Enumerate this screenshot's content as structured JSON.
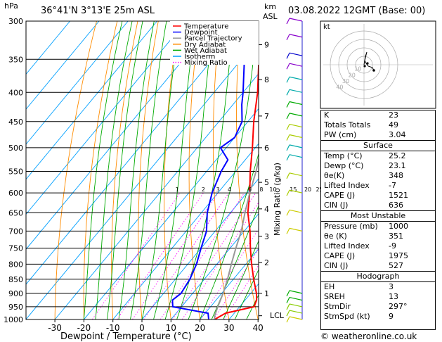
{
  "header": {
    "hpa_label": "hPa",
    "location": "36°41'N  3°13'E  25m  ASL",
    "km_label": "km",
    "asl_label": "ASL",
    "datetime": "03.08.2022  12GMT  (Base: 00)"
  },
  "footer": {
    "credit": "© weatheronline.co.uk"
  },
  "legend": [
    {
      "name": "Temperature",
      "color": "#ff0000",
      "style": "solid"
    },
    {
      "name": "Dewpoint",
      "color": "#0000ff",
      "style": "solid"
    },
    {
      "name": "Parcel Trajectory",
      "color": "#999999",
      "style": "solid"
    },
    {
      "name": "Dry Adiabat",
      "color": "#ff8c00",
      "style": "solid"
    },
    {
      "name": "Wet Adiabat",
      "color": "#00aa00",
      "style": "solid"
    },
    {
      "name": "Isotherm",
      "color": "#00a0ff",
      "style": "solid"
    },
    {
      "name": "Mixing Ratio",
      "color": "#ff00ff",
      "style": "dotted"
    }
  ],
  "chart_data": {
    "type": "line",
    "xlabel": "Dewpoint / Temperature (°C)",
    "ylabel_right": "Mixing Ratio (g/kg)",
    "pressure_ticks": [
      300,
      350,
      400,
      450,
      500,
      550,
      600,
      650,
      700,
      750,
      800,
      850,
      900,
      950,
      1000
    ],
    "temp_ticks": [
      -30,
      -20,
      -10,
      0,
      10,
      20,
      30,
      40
    ],
    "xlim": [
      -40,
      40
    ],
    "ylim": [
      1000,
      300
    ],
    "km_ticks": [
      {
        "km": "1",
        "p": 900
      },
      {
        "km": "2",
        "p": 795
      },
      {
        "km": "3",
        "p": 715
      },
      {
        "km": "4",
        "p": 640
      },
      {
        "km": "5",
        "p": 575
      },
      {
        "km": "6",
        "p": 500
      },
      {
        "km": "7",
        "p": 440
      },
      {
        "km": "8",
        "p": 380
      },
      {
        "km": "9",
        "p": 330
      }
    ],
    "lcl": {
      "label": "LCL",
      "p": 985
    },
    "mixing_ratio_labels": [
      {
        "v": "1",
        "p": 600,
        "t": -7
      },
      {
        "v": "2",
        "p": 600,
        "t": 2
      },
      {
        "v": "3",
        "p": 600,
        "t": 7
      },
      {
        "v": "4",
        "p": 600,
        "t": 11
      },
      {
        "v": "6",
        "p": 600,
        "t": 18
      },
      {
        "v": "8",
        "p": 600,
        "t": 22
      },
      {
        "v": "10",
        "p": 600,
        "t": 26
      },
      {
        "v": "15",
        "p": 600,
        "t": 33
      },
      {
        "v": "20",
        "p": 600,
        "t": 38
      },
      {
        "v": "25",
        "p": 600,
        "t": 42
      }
    ],
    "series": [
      {
        "name": "Temperature",
        "color": "#ff0000",
        "points": [
          [
            1000,
            25
          ],
          [
            975,
            27
          ],
          [
            950,
            35
          ],
          [
            925,
            34
          ],
          [
            900,
            32
          ],
          [
            850,
            27
          ],
          [
            800,
            22
          ],
          [
            750,
            17
          ],
          [
            700,
            12
          ],
          [
            650,
            6
          ],
          [
            600,
            1
          ],
          [
            550,
            -5
          ],
          [
            500,
            -11
          ],
          [
            450,
            -18
          ],
          [
            400,
            -25
          ],
          [
            350,
            -34
          ],
          [
            300,
            -44
          ]
        ]
      },
      {
        "name": "Dewpoint",
        "color": "#0000ff",
        "points": [
          [
            1000,
            23
          ],
          [
            975,
            21
          ],
          [
            950,
            7
          ],
          [
            925,
            5
          ],
          [
            900,
            6
          ],
          [
            850,
            5
          ],
          [
            800,
            3
          ],
          [
            750,
            0
          ],
          [
            700,
            -3
          ],
          [
            650,
            -8
          ],
          [
            600,
            -12
          ],
          [
            550,
            -15
          ],
          [
            525,
            -16
          ],
          [
            500,
            -22
          ],
          [
            480,
            -20
          ],
          [
            450,
            -22
          ],
          [
            420,
            -27
          ],
          [
            400,
            -30
          ],
          [
            350,
            -39
          ],
          [
            315,
            -55
          ],
          [
            300,
            -62
          ]
        ]
      },
      {
        "name": "Parcel Trajectory",
        "color": "#999999",
        "points": [
          [
            1000,
            25
          ],
          [
            985,
            24
          ],
          [
            950,
            22.5
          ],
          [
            900,
            20.5
          ],
          [
            850,
            18
          ],
          [
            800,
            15
          ],
          [
            750,
            12
          ],
          [
            700,
            9
          ],
          [
            650,
            5
          ],
          [
            600,
            1
          ],
          [
            550,
            -3
          ],
          [
            500,
            -8
          ],
          [
            450,
            -14
          ],
          [
            400,
            -21
          ],
          [
            350,
            -30
          ],
          [
            300,
            -40
          ]
        ]
      }
    ]
  },
  "hodograph": {
    "label": "kt",
    "rings": [
      "10",
      "20",
      "30",
      "40"
    ]
  },
  "indices": {
    "rows1": [
      {
        "k": "K",
        "v": "23"
      },
      {
        "k": "Totals Totals",
        "v": "49"
      },
      {
        "k": "PW (cm)",
        "v": "3.04"
      }
    ],
    "surface_title": "Surface",
    "surface": [
      {
        "k": "Temp (°C)",
        "v": "25.2"
      },
      {
        "k": "Dewp (°C)",
        "v": "23.1"
      },
      {
        "k": "θe(K)",
        "v": "348"
      },
      {
        "k": "Lifted Index",
        "v": "-7"
      },
      {
        "k": "CAPE (J)",
        "v": "1521"
      },
      {
        "k": "CIN (J)",
        "v": "636"
      }
    ],
    "mu_title": "Most Unstable",
    "mu": [
      {
        "k": "Pressure (mb)",
        "v": "1000"
      },
      {
        "k": "θe (K)",
        "v": "351"
      },
      {
        "k": "Lifted Index",
        "v": "-9"
      },
      {
        "k": "CAPE (J)",
        "v": "1975"
      },
      {
        "k": "CIN (J)",
        "v": "527"
      }
    ],
    "hodo_title": "Hodograph",
    "hodo": [
      {
        "k": "EH",
        "v": "3"
      },
      {
        "k": "SREH",
        "v": "13"
      },
      {
        "k": "StmDir",
        "v": "297°"
      },
      {
        "k": "StmSpd (kt)",
        "v": "9"
      }
    ]
  },
  "colors": {
    "temp": "#ff0000",
    "dew": "#0000ff",
    "dry": "#ff8c00",
    "wet": "#00aa00",
    "iso": "#00a0ff",
    "mix": "#ff00ff",
    "parcel": "#999999"
  }
}
